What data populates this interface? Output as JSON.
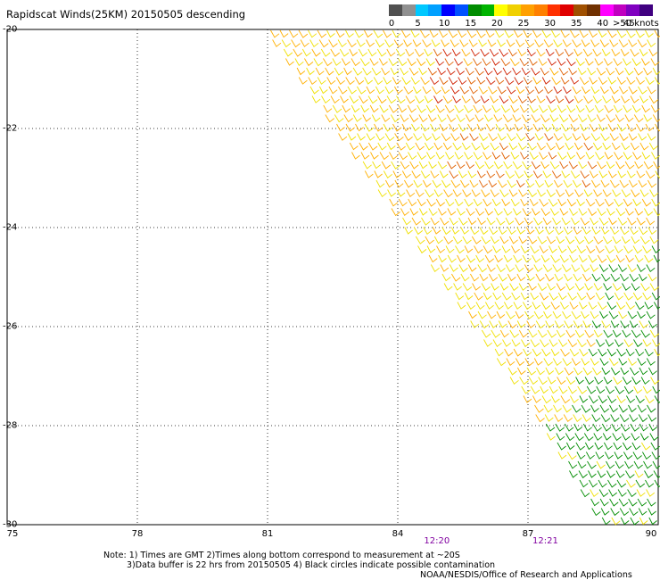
{
  "title": "Rapidscat Winds(25KM) 20150505 descending",
  "legend": {
    "colors": [
      "#505050",
      "#909090",
      "#00c8ff",
      "#00a0ff",
      "#0000ff",
      "#0050ff",
      "#008c00",
      "#00b400",
      "#ffff00",
      "#f0d000",
      "#ffa000",
      "#ff8000",
      "#ff3000",
      "#e00000",
      "#a05000",
      "#703000",
      "#ff00ff",
      "#c000c0",
      "#8000c0",
      "#400080"
    ],
    "labels": [
      "0",
      "5",
      "10",
      "15",
      "20",
      "25",
      "30",
      "35",
      "40",
      "45"
    ],
    "unit": ">50 knots"
  },
  "axes": {
    "lon_ticks": [
      "75",
      "78",
      "81",
      "84",
      "87",
      "90"
    ],
    "lat_ticks": [
      "-20",
      "-22",
      "-24",
      "-26",
      "-28",
      "-30"
    ],
    "lon_range": [
      75,
      90
    ],
    "lat_range": [
      -30,
      -20
    ],
    "grid": true
  },
  "swath_times": [
    {
      "label": "12:20",
      "lon": 84.9
    },
    {
      "label": "12:21",
      "lon": 87.4
    }
  ],
  "wind_colors": {
    "yellow": "#f0e000",
    "orange": "#ffb000",
    "dark_orange": "#e06000",
    "red": "#d02000",
    "green": "#008c00",
    "blue": "#0000d0"
  },
  "notes": {
    "line1": "Note: 1) Times are GMT 2)Times along bottom correspond to measurement at ~20S",
    "line2": "3)Data buffer is 22 hrs from 20150505 4) Black circles indicate possible contamination",
    "credit": "NOAA/NESDIS/Office of Research and Applications"
  }
}
